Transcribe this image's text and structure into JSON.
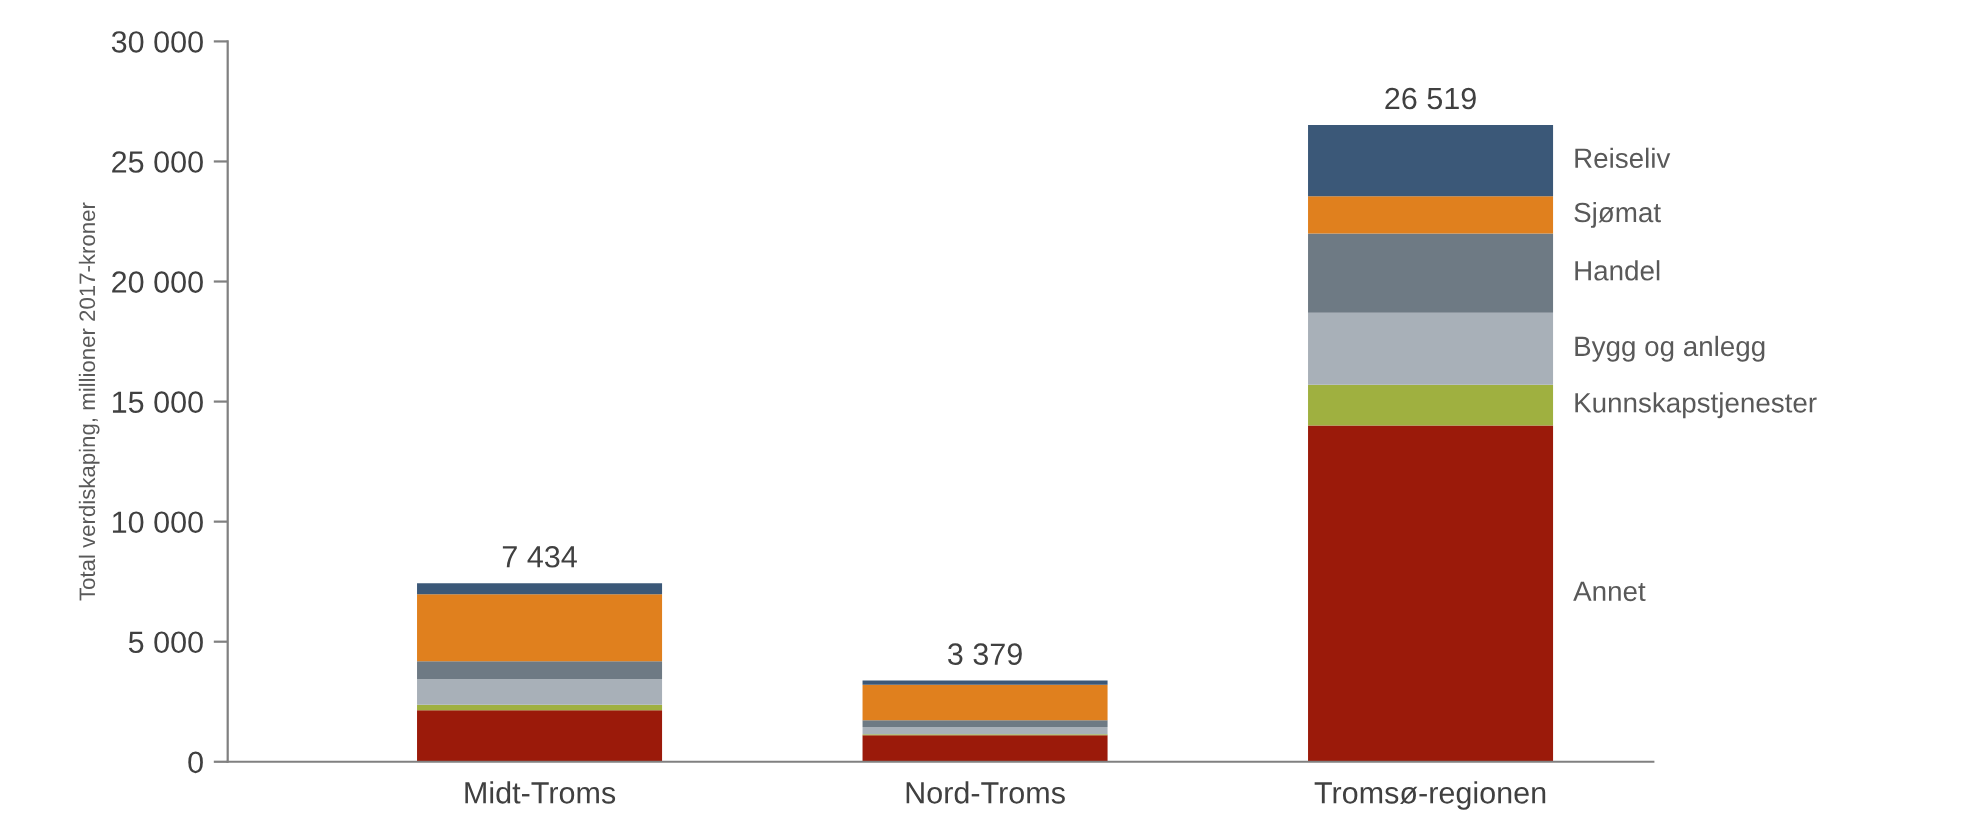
{
  "chart_data": {
    "type": "bar",
    "stacked": true,
    "ylabel": "Total verdiskaping, millioner 2017-kroner",
    "categories": [
      "Midt-Troms",
      "Nord-Troms",
      "Tromsø-regionen"
    ],
    "series": [
      {
        "name": "Annet",
        "color": "#9b1a0a",
        "values": [
          2150,
          1100,
          14000
        ]
      },
      {
        "name": "Kunnskapstjenester",
        "color": "#9fb040",
        "values": [
          220,
          50,
          1700
        ]
      },
      {
        "name": "Bygg og anlegg",
        "color": "#a8b0b8",
        "values": [
          1070,
          300,
          3000
        ]
      },
      {
        "name": "Handel",
        "color": "#6e7a84",
        "values": [
          750,
          280,
          3300
        ]
      },
      {
        "name": "Sjømat",
        "color": "#e0801e",
        "values": [
          2790,
          1480,
          1550
        ]
      },
      {
        "name": "Reiseliv",
        "color": "#3b5878",
        "values": [
          454,
          169,
          2969
        ]
      }
    ],
    "totals": [
      "7 434",
      "3 379",
      "26 519"
    ],
    "ylim": [
      0,
      30000
    ],
    "yticks": [
      {
        "value": 0,
        "label": "0"
      },
      {
        "value": 5000,
        "label": "5 000"
      },
      {
        "value": 10000,
        "label": "10 000"
      },
      {
        "value": 15000,
        "label": "15 000"
      },
      {
        "value": 20000,
        "label": "20 000"
      },
      {
        "value": 25000,
        "label": "25 000"
      },
      {
        "value": 30000,
        "label": "30 000"
      }
    ],
    "grid": false,
    "legend": false
  }
}
